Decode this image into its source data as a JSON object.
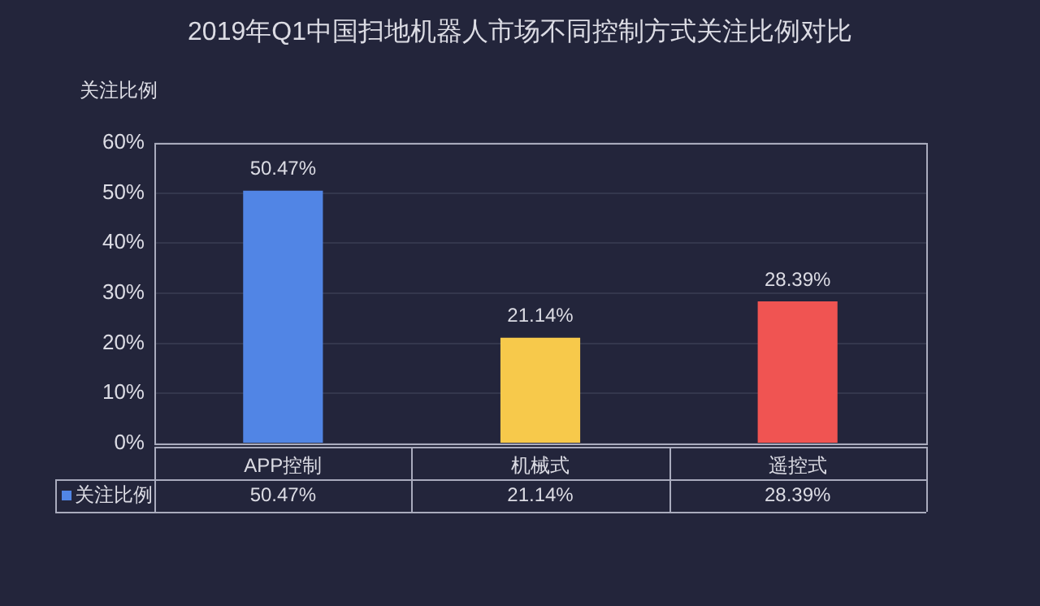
{
  "chart_data": {
    "type": "bar",
    "title": "2019年Q1中国扫地机器人市场不同控制方式关注比例对比",
    "ylabel": "关注比例",
    "categories": [
      "APP控制",
      "机械式",
      "遥控式"
    ],
    "series": [
      {
        "name": "关注比例",
        "color": "#5185e5",
        "colors": [
          "#5185e5",
          "#f7c94b",
          "#f05452"
        ],
        "values": [
          50.47,
          21.14,
          28.39
        ],
        "value_labels": [
          "50.47%",
          "21.14%",
          "28.39%"
        ]
      }
    ],
    "ylim": [
      0,
      60
    ],
    "yticks": [
      {
        "value": 0,
        "label": "0%"
      },
      {
        "value": 10,
        "label": "10%"
      },
      {
        "value": 20,
        "label": "20%"
      },
      {
        "value": 30,
        "label": "30%"
      },
      {
        "value": 40,
        "label": "40%"
      },
      {
        "value": 50,
        "label": "50%"
      },
      {
        "value": 60,
        "label": "60%"
      }
    ],
    "grid": "y",
    "legend": "bottom left"
  }
}
